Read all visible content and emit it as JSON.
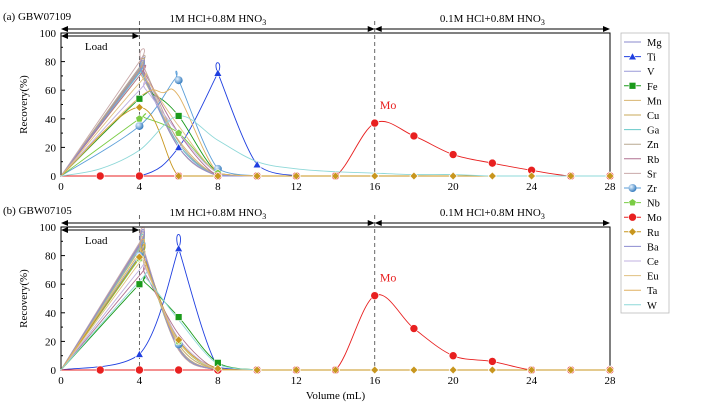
{
  "chart_data": [
    {
      "panel_label": "(a) GBW07109",
      "type": "line",
      "ylabel": "Recovery(%)",
      "xlabel": "",
      "xlim": [
        0,
        28
      ],
      "ylim": [
        0,
        100
      ],
      "x_ticks": [
        0,
        4,
        8,
        12,
        16,
        20,
        24,
        28
      ],
      "y_ticks": [
        0,
        20,
        40,
        60,
        80,
        100
      ],
      "regions": [
        {
          "label_main": "1M HCl+0.8M HNO",
          "label_sub": "3",
          "from": 0,
          "to": 16
        },
        {
          "label_main": "0.1M HCl+0.8M HNO",
          "label_sub": "3",
          "from": 16,
          "to": 28
        }
      ],
      "load": {
        "label": "Load",
        "from": 0,
        "to": 4
      },
      "dividers": [
        4,
        16
      ],
      "annotation": {
        "text": "Mo",
        "x": 16,
        "y": 37
      },
      "series": [
        {
          "name": "Mg",
          "color": "#8888cc",
          "x": [
            0,
            4,
            6,
            8,
            10
          ],
          "y": [
            0,
            75,
            22,
            0,
            0
          ],
          "peak": 4.1
        },
        {
          "name": "Ti",
          "color": "#1f3fe0",
          "marker": "triangle",
          "x": [
            0,
            4,
            6,
            8,
            10,
            12
          ],
          "y": [
            0,
            0,
            20,
            72,
            8,
            0
          ],
          "peak": 8
        },
        {
          "name": "V",
          "color": "#9a9ad8",
          "x": [
            0,
            4,
            6,
            8,
            10
          ],
          "y": [
            0,
            72,
            22,
            1,
            0
          ],
          "peak": 4.1
        },
        {
          "name": "Fe",
          "color": "#1a9a1a",
          "marker": "square",
          "x": [
            0,
            4,
            6,
            8,
            10
          ],
          "y": [
            0,
            54,
            42,
            2,
            0
          ],
          "peak": 4.8
        },
        {
          "name": "Mn",
          "color": "#d8b470",
          "x": [
            0,
            4,
            6,
            8,
            10
          ],
          "y": [
            0,
            70,
            25,
            0,
            0
          ],
          "peak": 4.1
        },
        {
          "name": "Cu",
          "color": "#c8a85a",
          "x": [
            0,
            4,
            6,
            8,
            10
          ],
          "y": [
            0,
            74,
            20,
            0,
            0
          ],
          "peak": 4.1
        },
        {
          "name": "Ga",
          "color": "#66c8c8",
          "x": [
            0,
            4,
            6,
            8,
            10
          ],
          "y": [
            0,
            72,
            22,
            0,
            0
          ],
          "peak": 4.1
        },
        {
          "name": "Zn",
          "color": "#b8a890",
          "x": [
            0,
            4,
            6,
            8,
            10
          ],
          "y": [
            0,
            76,
            24,
            0,
            0
          ],
          "peak": 4.2
        },
        {
          "name": "Rb",
          "color": "#b07090",
          "x": [
            0,
            4,
            6,
            8,
            10
          ],
          "y": [
            0,
            70,
            30,
            0,
            0
          ],
          "peak": 4.3
        },
        {
          "name": "Sr",
          "color": "#c9a9a9",
          "x": [
            0,
            4,
            6,
            8,
            10
          ],
          "y": [
            0,
            80,
            20,
            0,
            0
          ],
          "peak": 4.1
        },
        {
          "name": "Zr",
          "color": "#5a9ed8",
          "marker": "sphere",
          "x": [
            0,
            4,
            6,
            8,
            10
          ],
          "y": [
            0,
            35,
            67,
            5,
            0
          ],
          "peak": 5.8
        },
        {
          "name": "Nb",
          "color": "#7acc44",
          "marker": "pentagon",
          "x": [
            0,
            4,
            6,
            8,
            10
          ],
          "y": [
            0,
            40,
            30,
            2,
            0
          ],
          "peak": 4.3
        },
        {
          "name": "Mo",
          "color": "#e82020",
          "marker": "circle",
          "x": [
            0,
            2,
            4,
            6,
            8,
            10,
            12,
            14,
            16,
            18,
            20,
            22,
            24,
            26,
            28
          ],
          "y": [
            0,
            0,
            0,
            0,
            0,
            0,
            0,
            0,
            37,
            28,
            15,
            9,
            4,
            0,
            0
          ]
        },
        {
          "name": "Ru",
          "color": "#c8961e",
          "marker": "diamond",
          "x": [
            0,
            4,
            6,
            8,
            10,
            12,
            14,
            16,
            18,
            20,
            22,
            24,
            26,
            28
          ],
          "y": [
            0,
            48,
            0,
            0,
            0,
            0,
            0,
            0,
            0,
            0,
            0,
            0,
            0,
            0
          ]
        },
        {
          "name": "Ba",
          "color": "#8c8cd0",
          "x": [
            0,
            4,
            6,
            8,
            10
          ],
          "y": [
            0,
            73,
            20,
            0,
            0
          ],
          "peak": 4.1
        },
        {
          "name": "Ce",
          "color": "#c0b0e0",
          "x": [
            0,
            4,
            6,
            8,
            10
          ],
          "y": [
            0,
            60,
            30,
            2,
            0
          ],
          "peak": 4.3
        },
        {
          "name": "Eu",
          "color": "#e0c080",
          "x": [
            0,
            4,
            6,
            8,
            10
          ],
          "y": [
            0,
            65,
            35,
            2,
            0
          ],
          "peak": 4.4
        },
        {
          "name": "Ta",
          "color": "#e0b060",
          "x": [
            0,
            4,
            6,
            8,
            10
          ],
          "y": [
            0,
            55,
            56,
            2,
            0
          ],
          "peak": 5.2
        },
        {
          "name": "W",
          "color": "#8ed8d8",
          "x": [
            0,
            2,
            4,
            6,
            8,
            10,
            12,
            14,
            16,
            18,
            20,
            22,
            24,
            26,
            28
          ],
          "y": [
            0,
            5,
            18,
            42,
            25,
            10,
            5,
            3,
            2,
            1,
            1,
            0,
            0,
            0,
            0
          ]
        }
      ]
    },
    {
      "panel_label": "(b) GBW07105",
      "type": "line",
      "ylabel": "Recovery(%)",
      "xlabel": "Volume (mL)",
      "xlim": [
        0,
        28
      ],
      "ylim": [
        0,
        100
      ],
      "x_ticks": [
        0,
        4,
        8,
        12,
        16,
        20,
        24,
        28
      ],
      "y_ticks": [
        0,
        20,
        40,
        60,
        80,
        100
      ],
      "regions": [
        {
          "label_main": "1M HCl+0.8M HNO",
          "label_sub": "3",
          "from": 0,
          "to": 16
        },
        {
          "label_main": "0.1M HCl+0.8M HNO",
          "label_sub": "3",
          "from": 16,
          "to": 28
        }
      ],
      "load": {
        "label": "Load",
        "from": 0,
        "to": 4
      },
      "dividers": [
        4,
        16
      ],
      "annotation": {
        "text": "Mo",
        "x": 16,
        "y": 52
      },
      "series": [
        {
          "name": "Mg",
          "color": "#8888cc",
          "x": [
            0,
            4,
            6,
            8,
            10
          ],
          "y": [
            0,
            88,
            15,
            0,
            0
          ],
          "peak": 4.1
        },
        {
          "name": "Ti",
          "color": "#1f3fe0",
          "marker": "triangle",
          "x": [
            0,
            4,
            6,
            8,
            10,
            12
          ],
          "y": [
            0,
            11,
            85,
            2,
            0,
            0
          ],
          "peak": 6
        },
        {
          "name": "V",
          "color": "#9a9ad8",
          "x": [
            0,
            4,
            6,
            8,
            10
          ],
          "y": [
            0,
            86,
            15,
            0,
            0
          ],
          "peak": 4.1
        },
        {
          "name": "Fe",
          "color": "#1a9a1a",
          "marker": "square",
          "x": [
            0,
            4,
            6,
            8,
            10
          ],
          "y": [
            0,
            60,
            37,
            5,
            0
          ],
          "peak": 4.3
        },
        {
          "name": "Mn",
          "color": "#d8b470",
          "x": [
            0,
            4,
            6,
            8,
            10
          ],
          "y": [
            0,
            84,
            16,
            0,
            0
          ],
          "peak": 4.1
        },
        {
          "name": "Cu",
          "color": "#c8a85a",
          "x": [
            0,
            4,
            6,
            8,
            10
          ],
          "y": [
            0,
            87,
            14,
            0,
            0
          ],
          "peak": 4.1
        },
        {
          "name": "Ga",
          "color": "#66c8c8",
          "x": [
            0,
            4,
            6,
            8,
            10
          ],
          "y": [
            0,
            85,
            15,
            0,
            0
          ],
          "peak": 4.1
        },
        {
          "name": "Zn",
          "color": "#b8a890",
          "x": [
            0,
            4,
            6,
            8,
            10
          ],
          "y": [
            0,
            86,
            16,
            0,
            0
          ],
          "peak": 4.1
        },
        {
          "name": "Rb",
          "color": "#b07090",
          "x": [
            0,
            4,
            6,
            8,
            10
          ],
          "y": [
            0,
            66,
            25,
            0,
            0
          ],
          "peak": 4.3
        },
        {
          "name": "Sr",
          "color": "#c9a9a9",
          "x": [
            0,
            4,
            6,
            8,
            10
          ],
          "y": [
            0,
            89,
            14,
            0,
            0
          ],
          "peak": 4.1
        },
        {
          "name": "Zr",
          "color": "#5a9ed8",
          "marker": "sphere",
          "x": [
            0,
            4,
            6,
            8,
            10
          ],
          "y": [
            0,
            80,
            18,
            0,
            0
          ],
          "peak": 4.2
        },
        {
          "name": "Nb",
          "color": "#7acc44",
          "marker": "pentagon",
          "x": [
            0,
            4,
            6,
            8,
            10
          ],
          "y": [
            0,
            78,
            20,
            0,
            0
          ],
          "peak": 4.2
        },
        {
          "name": "Mo",
          "color": "#e82020",
          "marker": "circle",
          "x": [
            0,
            2,
            4,
            6,
            8,
            10,
            12,
            14,
            16,
            18,
            20,
            22,
            24,
            26,
            28
          ],
          "y": [
            0,
            0,
            0,
            0,
            0,
            0,
            0,
            0,
            52,
            29,
            10,
            6,
            0,
            0,
            0
          ]
        },
        {
          "name": "Ru",
          "color": "#c8961e",
          "marker": "diamond",
          "x": [
            0,
            4,
            6,
            8,
            10,
            12,
            14,
            16,
            18,
            20,
            22,
            24,
            26,
            28
          ],
          "y": [
            0,
            79,
            21,
            1,
            0,
            0,
            0,
            0,
            0,
            0,
            0,
            0,
            0,
            0
          ],
          "peak": 4.2
        },
        {
          "name": "Ba",
          "color": "#8c8cd0",
          "x": [
            0,
            4,
            6,
            8,
            10
          ],
          "y": [
            0,
            87,
            15,
            0,
            0
          ],
          "peak": 4.1
        },
        {
          "name": "Ce",
          "color": "#c0b0e0",
          "x": [
            0,
            4,
            6,
            8,
            10
          ],
          "y": [
            0,
            70,
            22,
            0,
            0
          ],
          "peak": 4.3
        },
        {
          "name": "Eu",
          "color": "#e0c080",
          "x": [
            0,
            4,
            6,
            8,
            10
          ],
          "y": [
            0,
            75,
            20,
            0,
            0
          ],
          "peak": 4.2
        },
        {
          "name": "Ta",
          "color": "#e0b060",
          "x": [
            0,
            4,
            6,
            8,
            10
          ],
          "y": [
            0,
            82,
            18,
            0,
            0
          ],
          "peak": 4.1
        },
        {
          "name": "W",
          "color": "#8ed8d8",
          "x": [
            0,
            4,
            6,
            8,
            10
          ],
          "y": [
            0,
            62,
            35,
            4,
            0
          ],
          "peak": 4.4
        }
      ]
    }
  ],
  "legend": {
    "placement": "right",
    "items": [
      {
        "name": "Mg",
        "color": "#8888cc",
        "marker": "none"
      },
      {
        "name": "Ti",
        "color": "#1f3fe0",
        "marker": "triangle"
      },
      {
        "name": "V",
        "color": "#9a9ad8",
        "marker": "none"
      },
      {
        "name": "Fe",
        "color": "#1a9a1a",
        "marker": "square"
      },
      {
        "name": "Mn",
        "color": "#d8b470",
        "marker": "none"
      },
      {
        "name": "Cu",
        "color": "#c8a85a",
        "marker": "none"
      },
      {
        "name": "Ga",
        "color": "#66c8c8",
        "marker": "none"
      },
      {
        "name": "Zn",
        "color": "#b8a890",
        "marker": "none"
      },
      {
        "name": "Rb",
        "color": "#b07090",
        "marker": "none"
      },
      {
        "name": "Sr",
        "color": "#c9a9a9",
        "marker": "none"
      },
      {
        "name": "Zr",
        "color": "#5a9ed8",
        "marker": "sphere"
      },
      {
        "name": "Nb",
        "color": "#7acc44",
        "marker": "pentagon"
      },
      {
        "name": "Mo",
        "color": "#e82020",
        "marker": "circle"
      },
      {
        "name": "Ru",
        "color": "#c8961e",
        "marker": "diamond"
      },
      {
        "name": "Ba",
        "color": "#8c8cd0",
        "marker": "none"
      },
      {
        "name": "Ce",
        "color": "#c0b0e0",
        "marker": "none"
      },
      {
        "name": "Eu",
        "color": "#e0c080",
        "marker": "none"
      },
      {
        "name": "Ta",
        "color": "#e0b060",
        "marker": "none"
      },
      {
        "name": "W",
        "color": "#8ed8d8",
        "marker": "none"
      }
    ]
  },
  "style": {
    "divider_color": "#555555",
    "axis_color": "#000000"
  }
}
